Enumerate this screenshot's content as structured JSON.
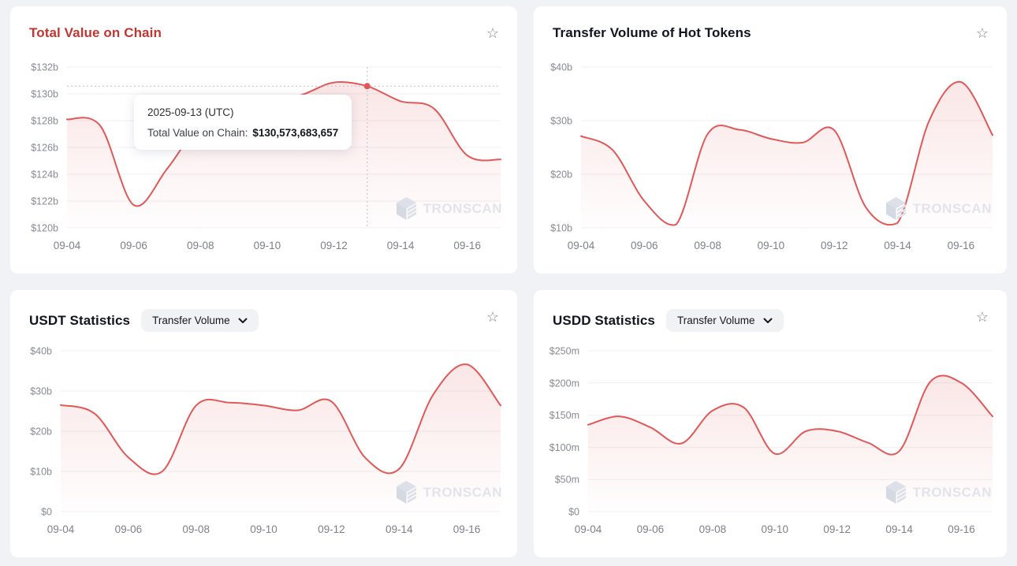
{
  "watermark_text": "TRONSCAN",
  "colors": {
    "page_bg": "#f1f2f6",
    "panel_bg": "#ffffff",
    "line_red": "#e05858",
    "title_red": "#c23631",
    "title_dark": "#121520"
  },
  "panels": [
    {
      "id": "total-value-on-chain",
      "title": "Total Value on Chain",
      "title_style": "red",
      "star": true
    },
    {
      "id": "hot-tokens",
      "title": "Transfer Volume of Hot Tokens",
      "star": true
    },
    {
      "id": "usdt-statistics",
      "title": "USDT Statistics",
      "dropdown_value": "Transfer Volume",
      "star": true
    },
    {
      "id": "usdd-statistics",
      "title": "USDD Statistics",
      "dropdown_value": "Transfer Volume",
      "star": true
    }
  ],
  "tooltip": {
    "date": "2025-09-13 (UTC)",
    "label": "Total Value on Chain:",
    "value": "$130,573,683,657"
  },
  "chart_data": [
    {
      "type": "area",
      "title": "Total Value on Chain",
      "unit": "USD billions",
      "x": [
        "09-04",
        "09-05",
        "09-06",
        "09-07",
        "09-08",
        "09-09",
        "09-10",
        "09-11",
        "09-12",
        "09-13",
        "09-14",
        "09-15",
        "09-16",
        "09-17"
      ],
      "values": [
        128.1,
        127.6,
        121.7,
        124.4,
        127.8,
        129.2,
        129.6,
        129.9,
        130.85,
        130.57,
        129.45,
        128.9,
        125.4,
        125.1
      ],
      "ylim": [
        120,
        132
      ],
      "yticks": [
        {
          "value": 132,
          "label": "$132b"
        },
        {
          "value": 130,
          "label": "$130b"
        },
        {
          "value": 128,
          "label": "$128b"
        },
        {
          "value": 126,
          "label": "$126b"
        },
        {
          "value": 124,
          "label": "$124b"
        },
        {
          "value": 122,
          "label": "$122b"
        },
        {
          "value": 120,
          "label": "$120b"
        }
      ],
      "xticks": [
        "09-04",
        "09-06",
        "09-08",
        "09-10",
        "09-12",
        "09-14",
        "09-16"
      ],
      "grid": true,
      "legend": false,
      "highlight": {
        "x": "09-13",
        "index": 9,
        "value": 130.573683657
      }
    },
    {
      "type": "area",
      "title": "Transfer Volume of Hot Tokens",
      "unit": "USD billions",
      "x": [
        "09-04",
        "09-05",
        "09-06",
        "09-07",
        "09-08",
        "09-09",
        "09-10",
        "09-11",
        "09-12",
        "09-13",
        "09-14",
        "09-15",
        "09-16",
        "09-17"
      ],
      "values": [
        27.1,
        24.5,
        15.0,
        10.6,
        27.5,
        28.3,
        26.6,
        25.9,
        28.2,
        13.8,
        10.9,
        30.0,
        37.2,
        27.3
      ],
      "ylim": [
        10,
        40
      ],
      "yticks": [
        {
          "value": 40,
          "label": "$40b"
        },
        {
          "value": 30,
          "label": "$30b"
        },
        {
          "value": 20,
          "label": "$20b"
        },
        {
          "value": 10,
          "label": "$10b"
        }
      ],
      "xticks": [
        "09-04",
        "09-06",
        "09-08",
        "09-10",
        "09-12",
        "09-14",
        "09-16"
      ],
      "grid": true,
      "legend": false
    },
    {
      "type": "area",
      "title": "USDT Statistics - Transfer Volume",
      "unit": "USD billions",
      "x": [
        "09-04",
        "09-05",
        "09-06",
        "09-07",
        "09-08",
        "09-09",
        "09-10",
        "09-11",
        "09-12",
        "09-13",
        "09-14",
        "09-15",
        "09-16",
        "09-17"
      ],
      "values": [
        26.5,
        24.4,
        13.5,
        10.0,
        26.4,
        27.1,
        26.4,
        25.2,
        27.4,
        13.4,
        10.6,
        29.0,
        36.6,
        26.4
      ],
      "ylim": [
        0,
        40
      ],
      "yticks": [
        {
          "value": 40,
          "label": "$40b"
        },
        {
          "value": 30,
          "label": "$30b"
        },
        {
          "value": 20,
          "label": "$20b"
        },
        {
          "value": 10,
          "label": "$10b"
        },
        {
          "value": 0,
          "label": "$0"
        }
      ],
      "xticks": [
        "09-04",
        "09-06",
        "09-08",
        "09-10",
        "09-12",
        "09-14",
        "09-16"
      ],
      "grid": true,
      "legend": false
    },
    {
      "type": "area",
      "title": "USDD Statistics - Transfer Volume",
      "unit": "USD millions",
      "x": [
        "09-04",
        "09-05",
        "09-06",
        "09-07",
        "09-08",
        "09-09",
        "09-10",
        "09-11",
        "09-12",
        "09-13",
        "09-14",
        "09-15",
        "09-16",
        "09-17"
      ],
      "values": [
        135,
        148,
        131,
        106,
        157,
        162,
        90,
        125,
        125,
        107,
        94,
        202,
        200,
        148
      ],
      "ylim": [
        0,
        250
      ],
      "yticks": [
        {
          "value": 250,
          "label": "$250m"
        },
        {
          "value": 200,
          "label": "$200m"
        },
        {
          "value": 150,
          "label": "$150m"
        },
        {
          "value": 100,
          "label": "$100m"
        },
        {
          "value": 50,
          "label": "$50m"
        },
        {
          "value": 0,
          "label": "$0"
        }
      ],
      "xticks": [
        "09-04",
        "09-06",
        "09-08",
        "09-10",
        "09-12",
        "09-14",
        "09-16"
      ],
      "grid": true,
      "legend": false
    }
  ]
}
